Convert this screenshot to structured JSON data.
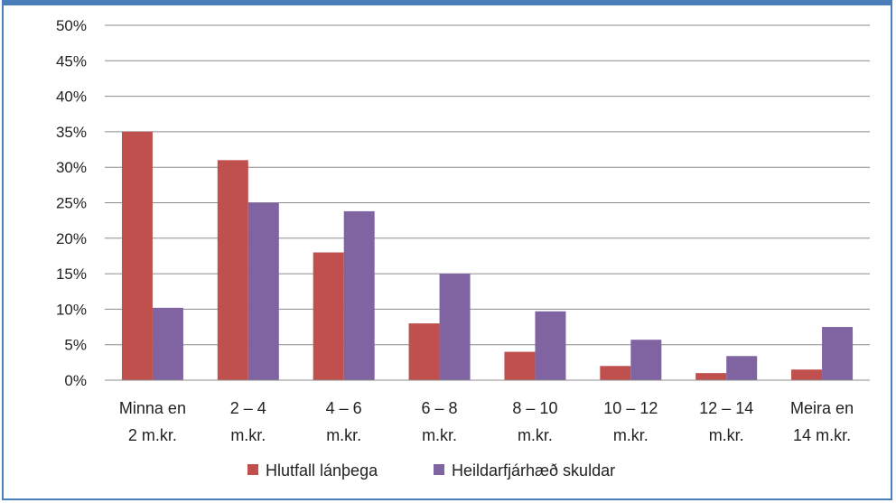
{
  "chart_data": {
    "type": "bar",
    "categories": [
      [
        "Minna en",
        "2 m.kr."
      ],
      [
        "2 – 4",
        "m.kr."
      ],
      [
        "4 – 6",
        "m.kr."
      ],
      [
        "6 – 8",
        "m.kr."
      ],
      [
        "8 – 10",
        "m.kr."
      ],
      [
        "10 – 12",
        "m.kr."
      ],
      [
        "12 – 14",
        "m.kr."
      ],
      [
        "Meira en",
        "14 m.kr."
      ]
    ],
    "series": [
      {
        "name": "Hlutfall lánþega",
        "color": "#c0504d",
        "values": [
          35,
          31,
          18,
          8,
          4,
          2,
          1,
          1.5
        ]
      },
      {
        "name": "Heildarfjárhæð skuldar",
        "color": "#8064a2",
        "values": [
          10.2,
          25,
          23.8,
          15,
          9.7,
          5.7,
          3.4,
          7.5
        ]
      }
    ],
    "yticks": [
      "0%",
      "5%",
      "10%",
      "15%",
      "20%",
      "25%",
      "30%",
      "35%",
      "40%",
      "45%",
      "50%"
    ],
    "ylim": [
      0,
      50
    ],
    "grid": true,
    "legend_position": "bottom",
    "border_color": "#4a7ebb",
    "gridline_color": "#8c8c8c"
  }
}
